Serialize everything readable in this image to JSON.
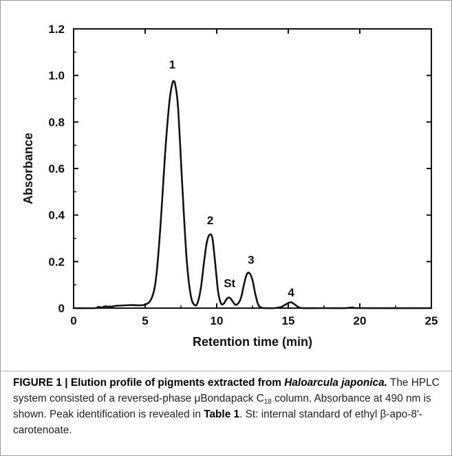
{
  "chart_data": {
    "type": "line",
    "xlabel": "Retention time (min)",
    "ylabel": "Absorbance",
    "xlim": [
      0,
      25
    ],
    "ylim": [
      0,
      1.2
    ],
    "x_ticks": [
      "0",
      "5",
      "10",
      "15",
      "20",
      "25"
    ],
    "y_ticks": [
      "0",
      "0.2",
      "0.4",
      "0.6",
      "0.8",
      "1.0",
      "1.2"
    ],
    "grid": false,
    "series": [
      {
        "x": [
          0.0,
          1.5,
          1.7,
          2.0,
          2.2,
          2.5,
          3.0,
          4.0,
          5.0,
          5.5,
          5.8,
          6.1,
          6.4,
          6.7,
          6.9,
          7.0,
          7.1,
          7.3,
          7.6,
          7.9,
          8.2,
          8.5,
          8.7,
          8.9,
          9.1,
          9.3,
          9.5,
          9.7,
          9.9,
          10.1,
          10.3,
          10.5,
          10.7,
          10.9,
          11.1,
          11.3,
          11.5,
          11.7,
          11.9,
          12.1,
          12.3,
          12.5,
          12.7,
          12.9,
          13.1,
          13.3,
          13.5,
          14.0,
          14.5,
          14.8,
          15.0,
          15.2,
          15.4,
          15.7,
          16.0,
          17.0,
          18.0,
          19.0,
          19.5,
          20.0,
          25.0
        ],
        "y": [
          0.0,
          0.0,
          0.005,
          0.003,
          0.008,
          0.005,
          0.01,
          0.013,
          0.015,
          0.05,
          0.15,
          0.38,
          0.67,
          0.89,
          0.965,
          0.975,
          0.96,
          0.86,
          0.52,
          0.21,
          0.05,
          0.012,
          0.03,
          0.09,
          0.19,
          0.28,
          0.315,
          0.3,
          0.19,
          0.07,
          0.02,
          0.02,
          0.04,
          0.045,
          0.03,
          0.015,
          0.02,
          0.045,
          0.1,
          0.145,
          0.15,
          0.12,
          0.06,
          0.015,
          0.003,
          0.0,
          0.0,
          0.0,
          0.005,
          0.015,
          0.022,
          0.025,
          0.018,
          0.005,
          0.0,
          0.0,
          0.0,
          0.0,
          0.003,
          0.0,
          0.0
        ]
      }
    ],
    "annotations": [
      {
        "text": "1",
        "x": 6.9,
        "y": 1.03
      },
      {
        "text": "2",
        "x": 9.55,
        "y": 0.36
      },
      {
        "text": "St",
        "x": 10.9,
        "y": 0.09
      },
      {
        "text": "3",
        "x": 12.4,
        "y": 0.19
      },
      {
        "text": "4",
        "x": 15.2,
        "y": 0.05
      }
    ]
  },
  "caption": {
    "head": "FIGURE 1 | Elution profile of pigments extracted from ",
    "species": "Haloarcula japonica.",
    "t1": " The HPLC system consisted of a reversed-phase μBondapack C",
    "sub": "18",
    "t2": " column. Absorbance at 490 nm is shown. Peak identification is revealed in ",
    "table_ref": "Table 1",
    "t3": ". St: internal standard of ethyl β-apo-8′-carotenoate."
  }
}
